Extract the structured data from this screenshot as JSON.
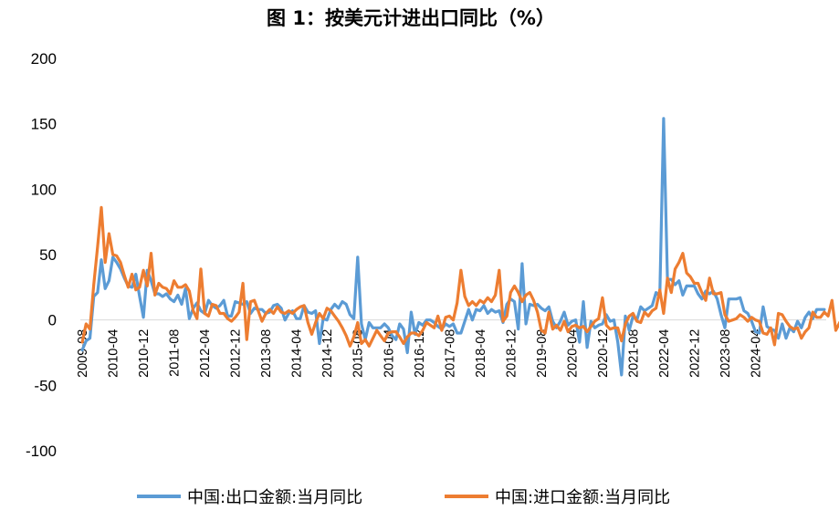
{
  "chart_data": {
    "type": "line",
    "title": "图 1：按美元计进出口同比（%）",
    "xlabel": "",
    "ylabel": "",
    "ylim": [
      -100,
      200
    ],
    "yticks": [
      -100,
      -50,
      0,
      50,
      100,
      150,
      200
    ],
    "xstart": "2009-08",
    "xend": "2024-05",
    "xtick_labels": [
      "2009-08",
      "2010-04",
      "2010-12",
      "2011-08",
      "2012-04",
      "2012-12",
      "2013-08",
      "2014-04",
      "2014-12",
      "2015-08",
      "2016-04",
      "2016-12",
      "2017-08",
      "2018-04",
      "2018-12",
      "2019-08",
      "2020-04",
      "2020-12",
      "2021-08",
      "2022-04",
      "2022-12",
      "2023-08",
      "2024-04"
    ],
    "grid": false,
    "legend_position": "bottom",
    "series": [
      {
        "name": "中国:出口金额:当月同比",
        "color": "#5B9BD5",
        "values": [
          -23,
          -16,
          -14,
          18,
          21,
          46,
          24,
          30,
          48,
          44,
          39,
          32,
          26,
          25,
          35,
          18,
          2,
          38,
          30,
          20,
          20,
          18,
          20,
          16,
          14,
          19,
          12,
          24,
          1,
          9,
          13,
          7,
          5,
          15,
          11,
          9,
          11,
          15,
          3,
          3,
          14,
          13,
          12,
          14,
          5,
          9,
          8,
          8,
          5,
          6,
          11,
          12,
          9,
          0,
          5,
          7,
          1,
          1,
          11,
          6,
          5,
          7,
          -18,
          1,
          0,
          8,
          12,
          9,
          14,
          12,
          4,
          1,
          48,
          -3,
          -15,
          -2,
          -6,
          -6,
          -6,
          -3,
          -6,
          -12,
          -15,
          -3,
          -7,
          -25,
          6,
          -11,
          -2,
          -4,
          0,
          0,
          -2,
          -5,
          -7,
          -3,
          -5,
          -3,
          -10,
          -10,
          -1,
          8,
          0,
          8,
          7,
          11,
          5,
          8,
          6,
          7,
          -2,
          12,
          16,
          14,
          -7,
          43,
          -3,
          12,
          11,
          12,
          9,
          7,
          10,
          -1,
          -6,
          -1,
          6,
          -4,
          -1,
          0,
          -17,
          14,
          -21,
          -1,
          -6,
          -4,
          -3,
          4,
          -1,
          0,
          -17,
          -42,
          3,
          -8,
          3,
          0,
          10,
          7,
          9,
          11,
          21,
          18,
          154,
          31,
          31,
          27,
          30,
          19,
          26,
          26,
          26,
          20,
          16,
          22,
          20,
          22,
          16,
          4,
          -6,
          16,
          16,
          16,
          17,
          7,
          5,
          -1,
          -9,
          -10,
          10,
          -5,
          -7,
          -8,
          -14,
          -3,
          -14,
          -6,
          -9,
          -1,
          -6,
          2,
          6,
          1,
          8,
          8,
          8
        ]
      },
      {
        "name": "中国:进口金额:当月同比",
        "color": "#ED7D31",
        "values": [
          -17,
          -3,
          -7,
          27,
          56,
          86,
          44,
          66,
          50,
          49,
          44,
          34,
          25,
          35,
          23,
          25,
          38,
          26,
          51,
          19,
          28,
          25,
          24,
          20,
          30,
          25,
          25,
          27,
          22,
          7,
          1,
          39,
          5,
          3,
          12,
          11,
          5,
          5,
          1,
          -1,
          2,
          6,
          28,
          -15,
          14,
          15,
          7,
          -1,
          5,
          8,
          5,
          10,
          6,
          5,
          7,
          5,
          8,
          10,
          11,
          -2,
          -11,
          -2,
          5,
          1,
          9,
          7,
          3,
          -1,
          -6,
          -12,
          -20,
          -13,
          -2,
          -18,
          -15,
          -20,
          -14,
          -8,
          -12,
          -16,
          -10,
          -9,
          -9,
          -13,
          -18,
          -13,
          -10,
          -10,
          -12,
          -8,
          -2,
          -4,
          -6,
          3,
          -8,
          2,
          3,
          0,
          13,
          38,
          18,
          11,
          14,
          11,
          15,
          13,
          17,
          14,
          19,
          38,
          -1,
          3,
          21,
          26,
          21,
          14,
          19,
          21,
          15,
          6,
          -8,
          -10,
          6,
          -7,
          -4,
          -8,
          -1,
          -9,
          -5,
          -4,
          -6,
          -5,
          -9,
          -5,
          -1,
          1,
          17,
          -4,
          -7,
          -6,
          -6,
          -16,
          -3,
          3,
          5,
          -1,
          -2,
          6,
          3,
          7,
          9,
          23,
          5,
          32,
          21,
          39,
          44,
          51,
          36,
          33,
          28,
          28,
          21,
          15,
          32,
          20,
          20,
          21,
          4,
          -1,
          0,
          1,
          4,
          2,
          -1,
          2,
          0,
          -1,
          -10,
          -11,
          -6,
          -19,
          5,
          4,
          -1,
          -5,
          -7,
          -6,
          -14,
          -9,
          -6,
          6,
          2,
          2,
          6,
          3,
          15,
          -8,
          -2,
          2,
          -2
        ]
      }
    ]
  }
}
